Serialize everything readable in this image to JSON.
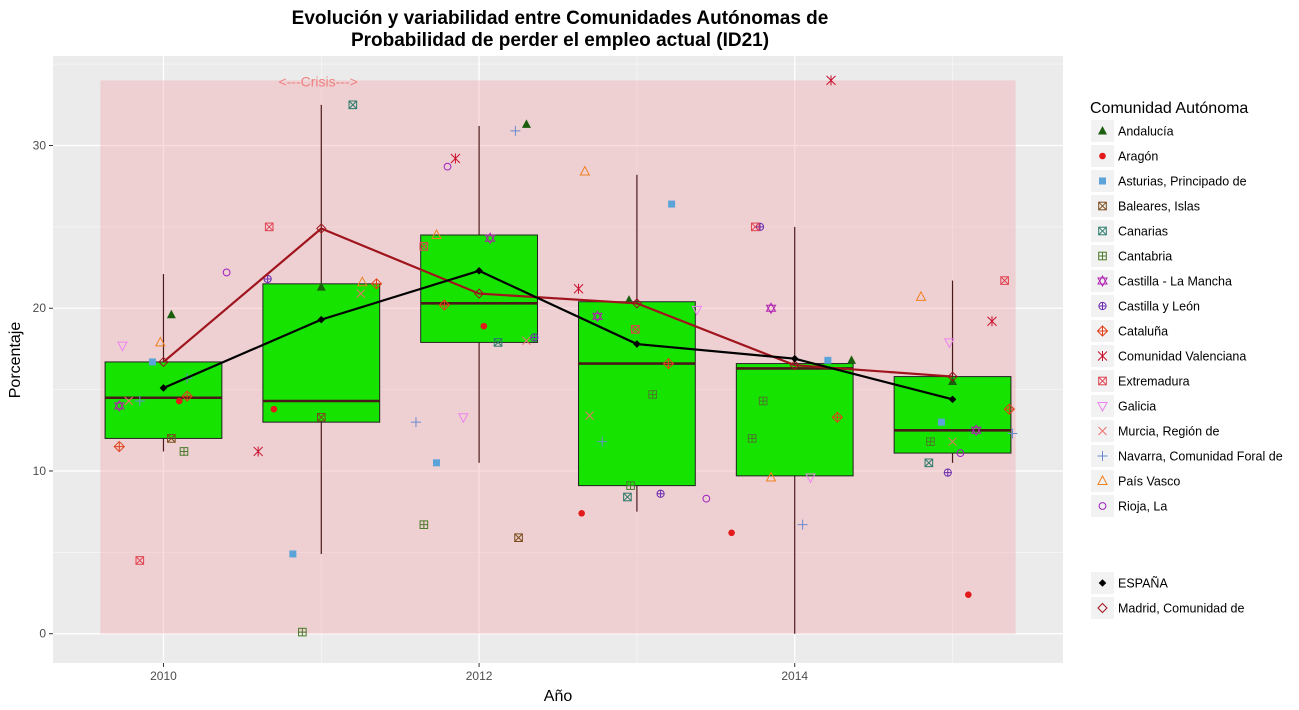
{
  "chart_data": {
    "type": "box",
    "title_line1": "Evolución y variabilidad entre Comunidades Autónomas de",
    "title_line2": "Probabilidad de perder el empleo actual (ID21)",
    "xlabel": "Año",
    "ylabel": "Porcentaje",
    "xlim": [
      2009.3,
      2015.7
    ],
    "ylim": [
      -1.8,
      35.5
    ],
    "x_ticks": [
      2010,
      2012,
      2014
    ],
    "y_ticks": [
      0,
      10,
      20,
      30
    ],
    "grid": true,
    "crisis": {
      "label": "<---Crisis--->",
      "x_from": 2009.6,
      "x_to": 2015.4,
      "y_from": 0,
      "y_to": 34,
      "color": "#f4a6aa"
    },
    "box_fill": "#16e300",
    "boxes": [
      {
        "x": 2010,
        "q1": 12.0,
        "median": 14.5,
        "q3": 16.7,
        "lower": 11.2,
        "upper": 22.1
      },
      {
        "x": 2011,
        "q1": 13.0,
        "median": 14.3,
        "q3": 21.5,
        "lower": 4.9,
        "upper": 32.5
      },
      {
        "x": 2012,
        "q1": 17.9,
        "median": 20.3,
        "q3": 24.5,
        "lower": 10.5,
        "upper": 31.2
      },
      {
        "x": 2013,
        "q1": 9.1,
        "median": 16.6,
        "q3": 20.4,
        "lower": 7.5,
        "upper": 28.2
      },
      {
        "x": 2014,
        "q1": 9.7,
        "median": 16.3,
        "q3": 16.6,
        "lower": 0.0,
        "upper": 25.0
      },
      {
        "x": 2015,
        "q1": 11.1,
        "median": 12.5,
        "q3": 15.8,
        "lower": 10.5,
        "upper": 21.7
      }
    ],
    "legend_title": "Comunidad Autónoma",
    "legend_placement": "right",
    "legend_items": [
      {
        "name": "Andalucía",
        "shape": "triangle",
        "color": "#1a5e0e"
      },
      {
        "name": "Aragón",
        "shape": "dot",
        "color": "#e31a1c"
      },
      {
        "name": "Asturias, Principado de",
        "shape": "square",
        "color": "#5ba3d9"
      },
      {
        "name": "Baleares, Islas",
        "shape": "square-x",
        "color": "#7a4a1a"
      },
      {
        "name": "Canarias",
        "shape": "square-x",
        "color": "#2a7a6a"
      },
      {
        "name": "Cantabria",
        "shape": "square-plus",
        "color": "#4a7a2a"
      },
      {
        "name": "Castilla - La Mancha",
        "shape": "star6",
        "color": "#b020b0"
      },
      {
        "name": "Castilla y León",
        "shape": "circle-plus",
        "color": "#6a2ab0"
      },
      {
        "name": "Cataluña",
        "shape": "diamond-plus",
        "color": "#e0401a"
      },
      {
        "name": "Comunidad Valenciana",
        "shape": "asterisk",
        "color": "#c8102e"
      },
      {
        "name": "Extremadura",
        "shape": "square-x",
        "color": "#e04050"
      },
      {
        "name": "Galicia",
        "shape": "triangle-down",
        "color": "#ee82ee"
      },
      {
        "name": "Murcia, Región de",
        "shape": "x",
        "color": "#f07070"
      },
      {
        "name": "Navarra, Comunidad Foral de",
        "shape": "plus",
        "color": "#6a8ad0"
      },
      {
        "name": "País Vasco",
        "shape": "triangle-open",
        "color": "#f08020"
      },
      {
        "name": "Rioja, La",
        "shape": "circle-open",
        "color": "#a020c0"
      }
    ],
    "legend_items2": [
      {
        "name": "ESPAÑA",
        "shape": "diamond",
        "color": "#000000"
      },
      {
        "name": "Madrid, Comunidad de",
        "shape": "diamond-open",
        "color": "#a0141e"
      }
    ],
    "series_lines": [
      {
        "name": "ESPAÑA",
        "color": "#000000",
        "marker": "diamond",
        "x": [
          2010,
          2011,
          2012,
          2013,
          2014,
          2015
        ],
        "y": [
          15.1,
          19.3,
          22.3,
          17.8,
          16.9,
          14.4
        ]
      },
      {
        "name": "Madrid, Comunidad de",
        "color": "#a0141e",
        "marker": "diamond-open",
        "x": [
          2010,
          2011,
          2012,
          2013,
          2014,
          2015
        ],
        "y": [
          16.7,
          24.9,
          20.9,
          20.3,
          16.5,
          15.8
        ]
      }
    ],
    "points": [
      {
        "x": 2010.05,
        "y": 19.6,
        "s": "Andalucía"
      },
      {
        "x": 2011.0,
        "y": 21.3,
        "s": "Andalucía"
      },
      {
        "x": 2012.3,
        "y": 31.3,
        "s": "Andalucía"
      },
      {
        "x": 2012.95,
        "y": 20.5,
        "s": "Andalucía"
      },
      {
        "x": 2014.36,
        "y": 16.8,
        "s": "Andalucía"
      },
      {
        "x": 2015.0,
        "y": 15.5,
        "s": "Andalucía"
      },
      {
        "x": 2010.1,
        "y": 14.3,
        "s": "Aragón"
      },
      {
        "x": 2010.7,
        "y": 13.8,
        "s": "Aragón"
      },
      {
        "x": 2012.03,
        "y": 18.9,
        "s": "Aragón"
      },
      {
        "x": 2012.65,
        "y": 7.4,
        "s": "Aragón"
      },
      {
        "x": 2013.6,
        "y": 6.2,
        "s": "Aragón"
      },
      {
        "x": 2015.1,
        "y": 2.4,
        "s": "Aragón"
      },
      {
        "x": 2009.93,
        "y": 16.7,
        "s": "Asturias, Principado de"
      },
      {
        "x": 2010.82,
        "y": 4.9,
        "s": "Asturias, Principado de"
      },
      {
        "x": 2011.73,
        "y": 10.5,
        "s": "Asturias, Principado de"
      },
      {
        "x": 2013.22,
        "y": 26.4,
        "s": "Asturias, Principado de"
      },
      {
        "x": 2014.21,
        "y": 16.8,
        "s": "Asturias, Principado de"
      },
      {
        "x": 2014.93,
        "y": 13.0,
        "s": "Asturias, Principado de"
      },
      {
        "x": 2010.05,
        "y": 12.0,
        "s": "Baleares, Islas"
      },
      {
        "x": 2011.0,
        "y": 13.3,
        "s": "Baleares, Islas"
      },
      {
        "x": 2012.25,
        "y": 5.9,
        "s": "Baleares, Islas"
      },
      {
        "x": 2011.2,
        "y": 32.5,
        "s": "Canarias"
      },
      {
        "x": 2012.12,
        "y": 17.9,
        "s": "Canarias"
      },
      {
        "x": 2012.94,
        "y": 8.4,
        "s": "Canarias"
      },
      {
        "x": 2014.85,
        "y": 10.5,
        "s": "Canarias"
      },
      {
        "x": 2010.13,
        "y": 11.2,
        "s": "Cantabria"
      },
      {
        "x": 2010.88,
        "y": 0.1,
        "s": "Cantabria"
      },
      {
        "x": 2011.65,
        "y": 6.7,
        "s": "Cantabria"
      },
      {
        "x": 2012.96,
        "y": 9.1,
        "s": "Cantabria"
      },
      {
        "x": 2013.1,
        "y": 14.7,
        "s": "Cantabria"
      },
      {
        "x": 2013.73,
        "y": 12.0,
        "s": "Cantabria"
      },
      {
        "x": 2013.8,
        "y": 14.3,
        "s": "Cantabria"
      },
      {
        "x": 2014.86,
        "y": 11.8,
        "s": "Cantabria"
      },
      {
        "x": 2009.72,
        "y": 14.0,
        "s": "Castilla - La Mancha"
      },
      {
        "x": 2012.07,
        "y": 24.3,
        "s": "Castilla - La Mancha"
      },
      {
        "x": 2012.75,
        "y": 19.5,
        "s": "Castilla - La Mancha"
      },
      {
        "x": 2013.85,
        "y": 20.0,
        "s": "Castilla - La Mancha"
      },
      {
        "x": 2015.15,
        "y": 12.5,
        "s": "Castilla - La Mancha"
      },
      {
        "x": 2010.66,
        "y": 21.8,
        "s": "Castilla y León"
      },
      {
        "x": 2012.35,
        "y": 18.2,
        "s": "Castilla y León"
      },
      {
        "x": 2013.15,
        "y": 8.6,
        "s": "Castilla y León"
      },
      {
        "x": 2013.78,
        "y": 25.0,
        "s": "Castilla y León"
      },
      {
        "x": 2014.97,
        "y": 9.9,
        "s": "Castilla y León"
      },
      {
        "x": 2009.72,
        "y": 11.5,
        "s": "Cataluña"
      },
      {
        "x": 2010.15,
        "y": 14.6,
        "s": "Cataluña"
      },
      {
        "x": 2011.35,
        "y": 21.5,
        "s": "Cataluña"
      },
      {
        "x": 2011.78,
        "y": 20.2,
        "s": "Cataluña"
      },
      {
        "x": 2013.2,
        "y": 16.6,
        "s": "Cataluña"
      },
      {
        "x": 2014.27,
        "y": 13.3,
        "s": "Cataluña"
      },
      {
        "x": 2015.36,
        "y": 13.8,
        "s": "Cataluña"
      },
      {
        "x": 2010.6,
        "y": 11.2,
        "s": "Comunidad Valenciana"
      },
      {
        "x": 2011.85,
        "y": 29.2,
        "s": "Comunidad Valenciana"
      },
      {
        "x": 2012.63,
        "y": 21.2,
        "s": "Comunidad Valenciana"
      },
      {
        "x": 2014.23,
        "y": 34.0,
        "s": "Comunidad Valenciana"
      },
      {
        "x": 2015.25,
        "y": 19.2,
        "s": "Comunidad Valenciana"
      },
      {
        "x": 2009.85,
        "y": 4.5,
        "s": "Extremadura"
      },
      {
        "x": 2010.67,
        "y": 25.0,
        "s": "Extremadura"
      },
      {
        "x": 2011.65,
        "y": 23.8,
        "s": "Extremadura"
      },
      {
        "x": 2012.99,
        "y": 18.7,
        "s": "Extremadura"
      },
      {
        "x": 2013.75,
        "y": 25.0,
        "s": "Extremadura"
      },
      {
        "x": 2015.33,
        "y": 21.7,
        "s": "Extremadura"
      },
      {
        "x": 2009.74,
        "y": 17.7,
        "s": "Galicia"
      },
      {
        "x": 2011.9,
        "y": 13.3,
        "s": "Galicia"
      },
      {
        "x": 2013.38,
        "y": 19.9,
        "s": "Galicia"
      },
      {
        "x": 2014.1,
        "y": 9.6,
        "s": "Galicia"
      },
      {
        "x": 2014.98,
        "y": 17.9,
        "s": "Galicia"
      },
      {
        "x": 2009.78,
        "y": 14.3,
        "s": "Murcia, Región de"
      },
      {
        "x": 2011.25,
        "y": 20.9,
        "s": "Murcia, Región de"
      },
      {
        "x": 2012.3,
        "y": 18.0,
        "s": "Murcia, Región de"
      },
      {
        "x": 2012.7,
        "y": 13.4,
        "s": "Murcia, Región de"
      },
      {
        "x": 2015.0,
        "y": 11.8,
        "s": "Murcia, Región de"
      },
      {
        "x": 2009.85,
        "y": 14.3,
        "s": "Navarra, Comunidad Foral de"
      },
      {
        "x": 2010.15,
        "y": 15.7,
        "s": "Navarra, Comunidad Foral de"
      },
      {
        "x": 2011.6,
        "y": 13.0,
        "s": "Navarra, Comunidad Foral de"
      },
      {
        "x": 2012.23,
        "y": 30.9,
        "s": "Navarra, Comunidad Foral de"
      },
      {
        "x": 2012.78,
        "y": 11.8,
        "s": "Navarra, Comunidad Foral de"
      },
      {
        "x": 2014.05,
        "y": 6.7,
        "s": "Navarra, Comunidad Foral de"
      },
      {
        "x": 2015.38,
        "y": 12.3,
        "s": "Navarra, Comunidad Foral de"
      },
      {
        "x": 2009.98,
        "y": 17.9,
        "s": "País Vasco"
      },
      {
        "x": 2011.26,
        "y": 21.6,
        "s": "País Vasco"
      },
      {
        "x": 2011.73,
        "y": 24.5,
        "s": "País Vasco"
      },
      {
        "x": 2012.67,
        "y": 28.4,
        "s": "País Vasco"
      },
      {
        "x": 2013.85,
        "y": 9.6,
        "s": "País Vasco"
      },
      {
        "x": 2014.8,
        "y": 20.7,
        "s": "País Vasco"
      },
      {
        "x": 2010.4,
        "y": 22.2,
        "s": "Rioja, La"
      },
      {
        "x": 2011.8,
        "y": 28.7,
        "s": "Rioja, La"
      },
      {
        "x": 2013.44,
        "y": 8.3,
        "s": "Rioja, La"
      },
      {
        "x": 2015.05,
        "y": 11.1,
        "s": "Rioja, La"
      }
    ]
  }
}
